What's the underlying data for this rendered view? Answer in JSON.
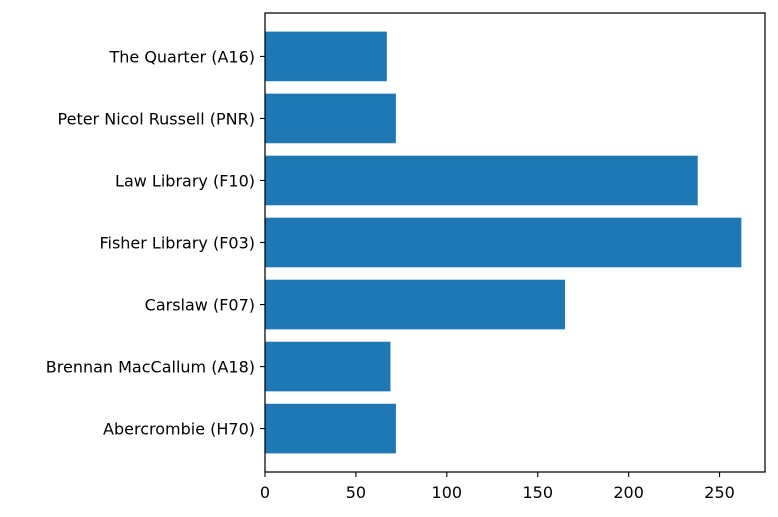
{
  "chart_data": {
    "type": "bar",
    "orientation": "horizontal",
    "title": "",
    "xlabel": "",
    "ylabel": "",
    "categories": [
      "Abercrombie (H70)",
      "Brennan MacCallum (A18)",
      "Carslaw (F07)",
      "Fisher Library (F03)",
      "Law Library (F10)",
      "Peter Nicol Russell (PNR)",
      "The Quarter (A16)"
    ],
    "values": [
      72,
      69,
      165,
      262,
      238,
      72,
      67
    ],
    "xlim": [
      0,
      275
    ],
    "xticks": [
      0,
      50,
      100,
      150,
      200,
      250
    ],
    "xtick_labels": [
      "0",
      "50",
      "100",
      "150",
      "200",
      "250"
    ],
    "grid": false,
    "legend": "none",
    "bar_color": "#1f77b4"
  }
}
